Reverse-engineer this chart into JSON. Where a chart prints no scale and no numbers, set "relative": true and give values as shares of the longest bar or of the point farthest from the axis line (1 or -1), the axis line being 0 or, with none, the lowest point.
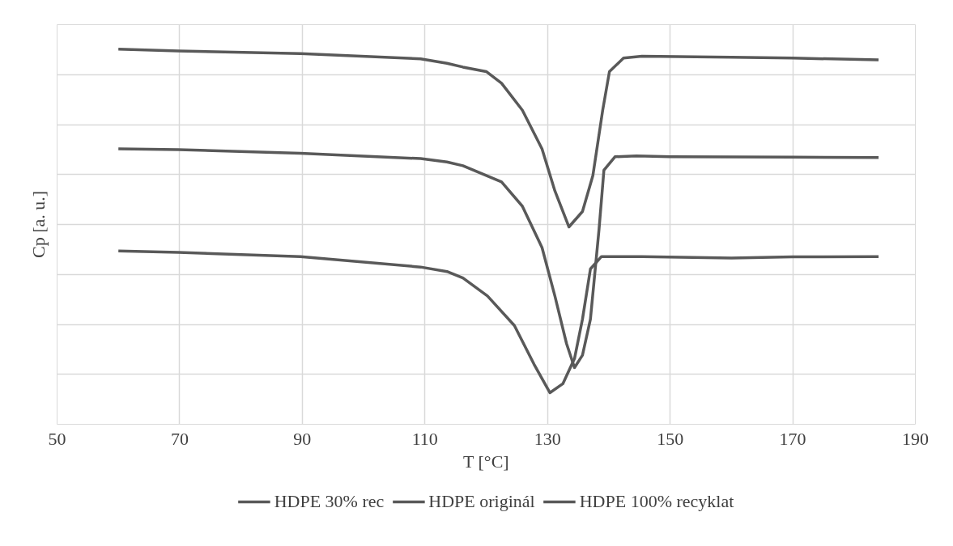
{
  "chart_data": {
    "type": "line",
    "relative": true,
    "xlabel": "T [°C]",
    "ylabel": "Cp [a. u.]",
    "xlim": [
      50,
      190
    ],
    "xticks": [
      50,
      70,
      90,
      110,
      130,
      150,
      170,
      190
    ],
    "grid": true,
    "legend": "bottom",
    "line_style": "solid",
    "marker": "none",
    "series": [
      {
        "name": "HDPE 30% rec",
        "color": "#595959",
        "x": [
          60,
          69.8,
          89.7,
          109.3,
          113.6,
          116.2,
          120,
          122.5,
          125.9,
          129.1,
          131.2,
          133.5,
          135.7,
          137.4,
          139.0,
          140.1,
          142.4,
          145.4,
          160,
          170,
          184
        ],
        "values": [
          1.0,
          0.995,
          0.988,
          0.974,
          0.962,
          0.952,
          0.94,
          0.909,
          0.837,
          0.734,
          0.622,
          0.526,
          0.567,
          0.663,
          0.837,
          0.94,
          0.976,
          0.981,
          0.978,
          0.976,
          0.971
        ]
      },
      {
        "name": "HDPE originál",
        "color": "#595959",
        "x": [
          60,
          69.8,
          89.7,
          109.3,
          113.6,
          116.2,
          122.5,
          125.9,
          129.1,
          131.2,
          133.1,
          134.4,
          135.7,
          137.0,
          138.4,
          139.2,
          141.0,
          144.5,
          150,
          170,
          184
        ],
        "values": [
          0.734,
          0.732,
          0.722,
          0.708,
          0.699,
          0.689,
          0.646,
          0.581,
          0.471,
          0.342,
          0.215,
          0.151,
          0.184,
          0.28,
          0.519,
          0.677,
          0.713,
          0.715,
          0.713,
          0.712,
          0.711
        ]
      },
      {
        "name": "HDPE 100% recyklat",
        "color": "#595959",
        "x": [
          60,
          69.8,
          89.7,
          109.3,
          113.6,
          116.2,
          120.2,
          124.6,
          127.8,
          130.4,
          132.5,
          134.4,
          135.7,
          137.0,
          138.8,
          145.4,
          160,
          170,
          184
        ],
        "values": [
          0.462,
          0.458,
          0.447,
          0.419,
          0.407,
          0.39,
          0.342,
          0.263,
          0.16,
          0.084,
          0.108,
          0.175,
          0.28,
          0.414,
          0.447,
          0.447,
          0.443,
          0.446,
          0.447
        ]
      }
    ]
  }
}
